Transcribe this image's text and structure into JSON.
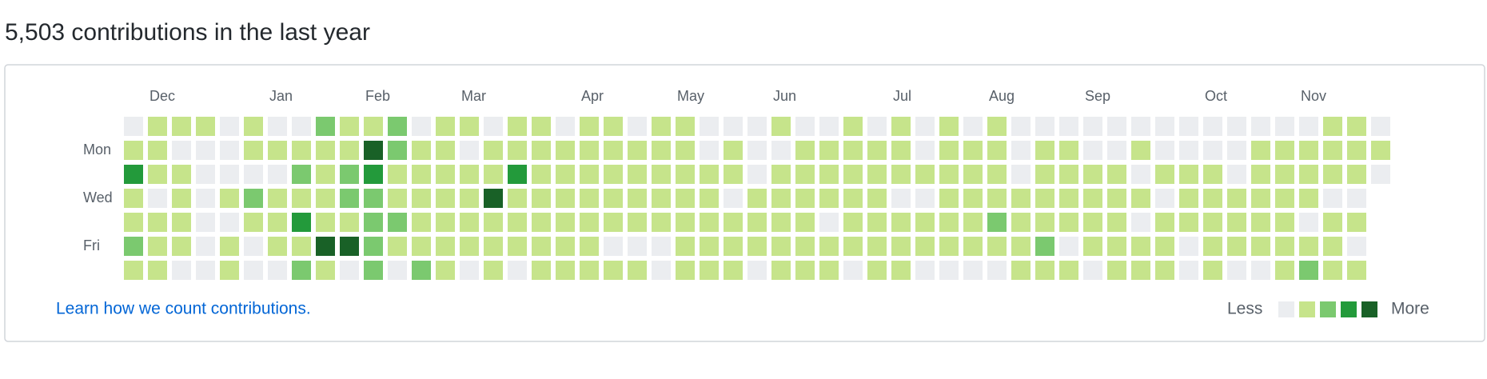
{
  "title": "5,503 contributions in the last year",
  "months": [
    "Dec",
    "Jan",
    "Feb",
    "Mar",
    "Apr",
    "May",
    "Jun",
    "Jul",
    "Aug",
    "Sep",
    "Oct",
    "Nov"
  ],
  "days": [
    "Mon",
    "Wed",
    "Fri"
  ],
  "colors": [
    "#ebedf0",
    "#c6e48b",
    "#7bc96f",
    "#239a3b",
    "#196127"
  ],
  "grid": {
    "rows": [
      [
        0,
        1,
        1,
        1,
        0,
        1,
        0,
        0,
        2,
        1,
        1,
        2,
        0,
        1,
        1,
        0,
        1,
        1,
        0,
        1,
        1,
        0,
        1,
        1,
        0,
        0,
        0,
        1,
        0,
        0,
        1,
        0,
        1,
        0,
        1,
        0,
        1,
        0,
        0,
        0,
        0,
        0,
        0,
        0,
        0,
        0,
        0,
        0,
        0,
        0,
        1,
        1,
        0
      ],
      [
        1,
        1,
        0,
        0,
        0,
        1,
        1,
        1,
        1,
        1,
        4,
        2,
        1,
        1,
        0,
        1,
        1,
        1,
        1,
        1,
        1,
        1,
        1,
        1,
        0,
        1,
        0,
        0,
        1,
        1,
        1,
        1,
        1,
        0,
        1,
        1,
        1,
        0,
        1,
        1,
        0,
        0,
        1,
        0,
        0,
        0,
        0,
        1,
        1,
        1,
        1,
        1,
        1
      ],
      [
        3,
        1,
        1,
        0,
        0,
        0,
        0,
        2,
        1,
        2,
        3,
        1,
        1,
        1,
        1,
        1,
        3,
        1,
        1,
        1,
        1,
        1,
        1,
        1,
        1,
        1,
        0,
        1,
        1,
        1,
        1,
        1,
        1,
        1,
        1,
        1,
        1,
        0,
        1,
        1,
        1,
        1,
        0,
        1,
        1,
        1,
        0,
        1,
        1,
        1,
        1,
        1,
        0
      ],
      [
        1,
        0,
        1,
        0,
        1,
        2,
        1,
        1,
        1,
        2,
        2,
        1,
        1,
        1,
        1,
        4,
        1,
        1,
        1,
        1,
        1,
        1,
        1,
        1,
        1,
        0,
        1,
        1,
        1,
        1,
        1,
        1,
        0,
        0,
        1,
        1,
        1,
        1,
        1,
        1,
        1,
        1,
        1,
        0,
        1,
        1,
        1,
        1,
        1,
        1,
        0,
        0,
        null
      ],
      [
        1,
        1,
        1,
        0,
        0,
        1,
        1,
        3,
        1,
        1,
        2,
        2,
        1,
        1,
        1,
        1,
        1,
        1,
        1,
        1,
        1,
        1,
        1,
        1,
        1,
        1,
        1,
        1,
        1,
        0,
        1,
        1,
        1,
        1,
        1,
        1,
        2,
        1,
        1,
        1,
        1,
        1,
        0,
        1,
        1,
        1,
        1,
        1,
        1,
        0,
        1,
        1,
        null
      ],
      [
        2,
        1,
        1,
        0,
        1,
        0,
        1,
        1,
        4,
        4,
        2,
        1,
        1,
        1,
        1,
        1,
        1,
        1,
        1,
        1,
        0,
        0,
        0,
        1,
        1,
        1,
        1,
        1,
        1,
        1,
        1,
        1,
        1,
        1,
        1,
        1,
        1,
        1,
        2,
        0,
        1,
        1,
        1,
        1,
        0,
        1,
        1,
        1,
        1,
        1,
        1,
        0,
        null
      ],
      [
        1,
        1,
        0,
        0,
        1,
        0,
        0,
        2,
        1,
        0,
        2,
        0,
        2,
        1,
        0,
        1,
        0,
        1,
        1,
        1,
        1,
        1,
        0,
        1,
        1,
        1,
        0,
        1,
        1,
        1,
        0,
        1,
        1,
        0,
        0,
        0,
        0,
        1,
        1,
        1,
        0,
        1,
        1,
        1,
        0,
        1,
        0,
        0,
        1,
        2,
        1,
        1,
        null
      ]
    ]
  },
  "link": "Learn how we count contributions.",
  "legend": {
    "less": "Less",
    "more": "More"
  }
}
